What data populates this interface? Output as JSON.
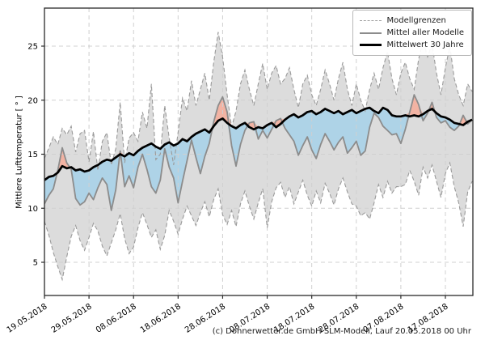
{
  "y_axis": {
    "label": "Mittlere Lufttemperatur [ ° ]",
    "ticks": [
      5,
      10,
      15,
      20,
      25
    ]
  },
  "x_axis": {
    "tick_labels": [
      "19.05.2018",
      "29.05.2018",
      "08.06.2018",
      "18.06.2018",
      "28.06.2018",
      "08.07.2018",
      "18.07.2018",
      "28.07.2018",
      "07.08.2018",
      "17.08.2018"
    ],
    "tick_days": [
      0,
      10,
      20,
      30,
      40,
      50,
      60,
      70,
      80,
      90
    ]
  },
  "legend": {
    "items": [
      {
        "label": "Modellgrenzen",
        "style": "dashed-gray"
      },
      {
        "label": "Mittel aller Modelle",
        "style": "solid-gray"
      },
      {
        "label": "Mittelwert 30 Jahre",
        "style": "solid-black-thick"
      }
    ]
  },
  "caption": "(c) Donnerwetter.de GmbH SLM-Modell, Lauf 20.05.2018 00 Uhr",
  "colors": {
    "envelope_fill": "#dcdcdc",
    "envelope_edge": "#9a9a9a",
    "below_mean_fill": "#aed3e7",
    "above_mean_fill": "#f2b3a3",
    "model_mean_line": "#8c8c8c",
    "mean30_line": "#000000",
    "grid": "#d0d0d0",
    "frame": "#2a2a2a"
  },
  "chart_data": {
    "type": "line",
    "title": "",
    "xlabel": "",
    "ylabel": "Mittlere Lufttemperatur [ ° ]",
    "ylim": [
      1.9,
      28.5
    ],
    "grid": "dashed both axes",
    "legend_position": "upper right",
    "x_start_date": "19.05.2018",
    "x_end_date": "23.08.2018",
    "sampling": "daily",
    "num_points": 97,
    "x_tick_dates": [
      "19.05.2018",
      "29.05.2018",
      "08.06.2018",
      "18.06.2018",
      "28.06.2018",
      "08.07.2018",
      "18.07.2018",
      "28.07.2018",
      "07.08.2018",
      "17.08.2018"
    ],
    "series": [
      {
        "name": "Modellgrenzen (obere Grenze)",
        "style": "dashed gray boundary of gray envelope",
        "values": [
          14.6,
          15.6,
          16.6,
          15.9,
          17.4,
          16.8,
          17.6,
          15.2,
          16.9,
          17.2,
          14.3,
          17.1,
          13.5,
          16.2,
          17.0,
          14.0,
          15.5,
          19.8,
          14.2,
          16.5,
          17.0,
          16.2,
          18.9,
          17.4,
          21.5,
          14.5,
          15.0,
          19.5,
          16.5,
          14.0,
          17.0,
          20.2,
          19.0,
          21.8,
          19.5,
          21.0,
          22.5,
          20.0,
          23.5,
          26.3,
          24.0,
          20.5,
          17.5,
          19.0,
          21.5,
          22.8,
          21.0,
          19.5,
          21.5,
          23.4,
          21.0,
          22.5,
          23.2,
          21.5,
          22.0,
          23.0,
          21.0,
          19.3,
          21.5,
          22.3,
          20.5,
          19.5,
          21.0,
          22.8,
          21.5,
          20.0,
          22.0,
          23.5,
          21.0,
          19.5,
          21.5,
          20.0,
          19.0,
          21.0,
          22.5,
          21.0,
          23.0,
          24.5,
          22.0,
          20.5,
          22.5,
          23.5,
          22.0,
          21.0,
          23.8,
          25.5,
          24.0,
          25.2,
          22.5,
          20.5,
          23.0,
          25.0,
          22.0,
          20.5,
          19.5,
          21.5,
          20.8
        ]
      },
      {
        "name": "Modellgrenzen (untere Grenze)",
        "style": "dashed gray boundary of gray envelope",
        "values": [
          8.8,
          7.5,
          5.9,
          4.6,
          3.4,
          5.5,
          7.4,
          8.4,
          7.0,
          6.1,
          7.3,
          8.6,
          7.9,
          6.5,
          5.6,
          6.8,
          8.0,
          9.5,
          7.2,
          5.8,
          6.4,
          8.2,
          9.6,
          8.5,
          7.3,
          8.0,
          6.2,
          7.5,
          9.8,
          8.8,
          7.6,
          9.0,
          10.2,
          9.3,
          8.4,
          9.6,
          10.6,
          9.2,
          10.8,
          11.8,
          9.4,
          8.5,
          9.8,
          8.3,
          10.4,
          11.6,
          10.2,
          9.0,
          10.5,
          11.8,
          8.2,
          10.6,
          11.9,
          12.4,
          11.0,
          12.0,
          10.4,
          11.5,
          12.6,
          11.2,
          10.2,
          11.6,
          10.5,
          12.3,
          11.4,
          10.3,
          11.8,
          12.8,
          11.5,
          10.4,
          10.2,
          9.3,
          9.6,
          9.0,
          10.5,
          12.2,
          11.0,
          12.5,
          11.4,
          12.0,
          12.0,
          12.2,
          13.5,
          12.5,
          11.2,
          13.8,
          12.8,
          14.0,
          12.5,
          11.0,
          13.2,
          14.2,
          12.0,
          10.5,
          8.3,
          11.5,
          12.5
        ]
      },
      {
        "name": "Mittel aller Modelle",
        "style": "solid gray line; blue fill where below 30-year mean, salmon fill where above",
        "values": [
          10.4,
          11.2,
          11.8,
          13.5,
          15.6,
          14.2,
          13.6,
          10.9,
          10.3,
          10.6,
          11.4,
          10.8,
          11.9,
          12.8,
          12.2,
          9.8,
          11.7,
          15.3,
          12.0,
          13.0,
          11.9,
          13.8,
          15.0,
          13.6,
          12.0,
          11.4,
          12.6,
          15.5,
          13.8,
          12.8,
          10.5,
          12.5,
          14.4,
          16.3,
          14.7,
          13.2,
          14.8,
          16.0,
          18.0,
          19.5,
          20.3,
          18.9,
          15.8,
          13.9,
          15.9,
          17.2,
          17.9,
          18.0,
          16.4,
          17.2,
          16.5,
          17.3,
          18.1,
          18.3,
          17.4,
          16.8,
          16.2,
          14.9,
          15.8,
          16.6,
          15.4,
          14.6,
          15.9,
          16.9,
          16.2,
          15.4,
          16.1,
          16.6,
          15.1,
          15.6,
          16.2,
          14.9,
          15.3,
          17.5,
          18.8,
          18.4,
          17.6,
          17.2,
          16.8,
          16.9,
          16.0,
          17.3,
          18.9,
          20.5,
          19.6,
          18.1,
          18.8,
          19.8,
          18.4,
          17.9,
          18.1,
          17.5,
          17.2,
          17.6,
          18.6,
          17.8,
          18.2
        ]
      },
      {
        "name": "Mittelwert 30 Jahre",
        "style": "thick black line",
        "values": [
          12.6,
          12.9,
          13.0,
          13.3,
          13.9,
          13.7,
          13.8,
          13.5,
          13.6,
          13.4,
          13.5,
          13.8,
          14.0,
          14.3,
          14.5,
          14.4,
          14.7,
          15.0,
          14.8,
          15.1,
          14.9,
          15.3,
          15.6,
          15.8,
          16.0,
          15.7,
          15.5,
          15.9,
          16.1,
          15.8,
          16.0,
          16.4,
          16.2,
          16.6,
          16.9,
          17.1,
          17.3,
          17.0,
          17.6,
          18.1,
          18.3,
          17.9,
          17.6,
          17.4,
          17.7,
          17.9,
          17.5,
          17.3,
          17.5,
          17.4,
          17.7,
          17.9,
          17.5,
          17.8,
          18.2,
          18.5,
          18.7,
          18.4,
          18.6,
          18.9,
          19.0,
          18.7,
          18.9,
          19.2,
          19.0,
          18.8,
          19.0,
          18.7,
          18.9,
          19.1,
          18.8,
          19.0,
          19.2,
          19.3,
          19.0,
          18.8,
          19.3,
          19.1,
          18.6,
          18.5,
          18.5,
          18.6,
          18.5,
          18.6,
          18.5,
          18.7,
          19.0,
          19.2,
          18.8,
          18.5,
          18.4,
          18.2,
          17.9,
          17.8,
          17.7,
          18.0,
          18.2
        ]
      }
    ]
  }
}
